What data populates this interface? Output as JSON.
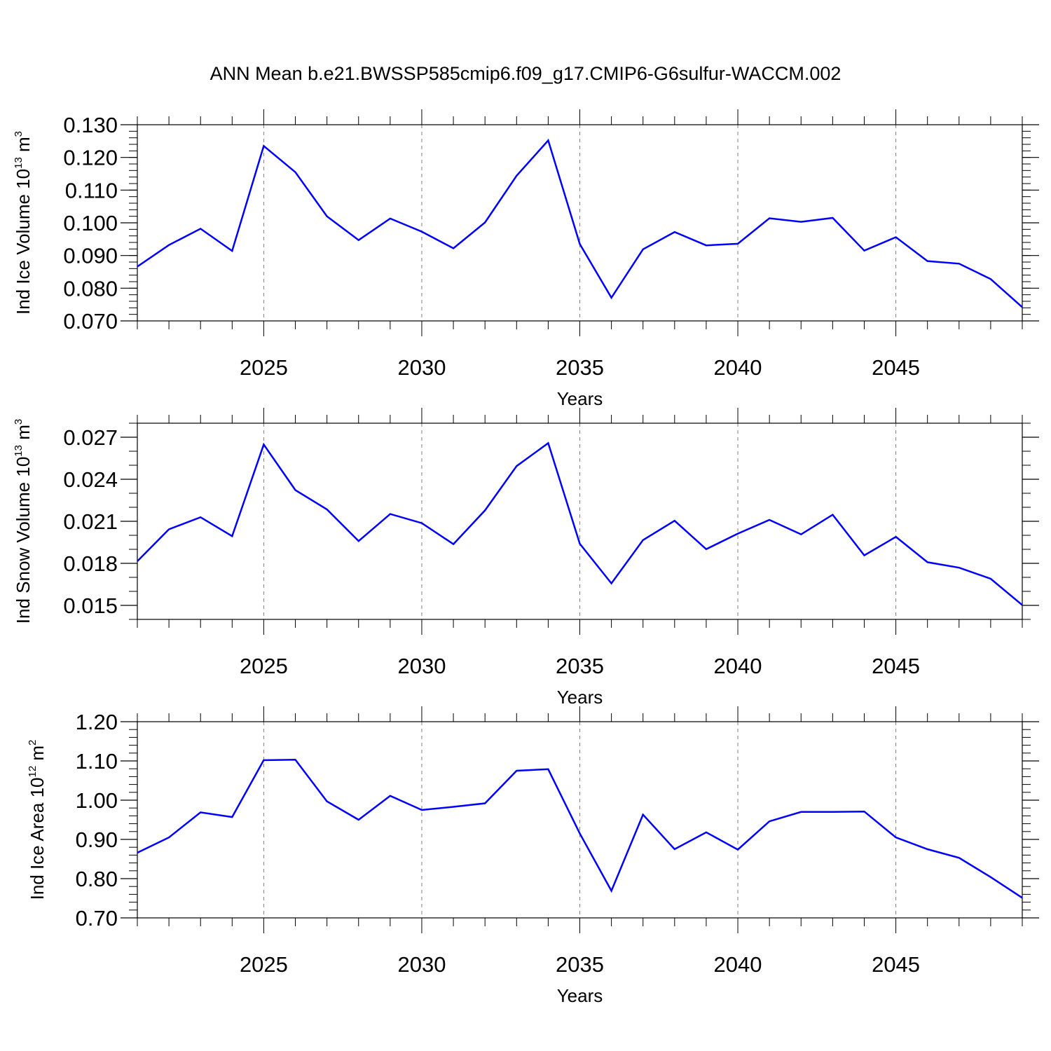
{
  "title": "ANN Mean b.e21.BWSSP585cmip6.f09_g17.CMIP6-G6sulfur-WACCM.002",
  "colors": {
    "line": "#0000ff",
    "axis": "#000000",
    "grid": "#808080"
  },
  "chart_data": [
    {
      "type": "line",
      "ylabel": {
        "text": "Ind Ice Volume 10",
        "exp": "13",
        "unit": " m",
        "unit_exp": "3"
      },
      "xlabel": "Years",
      "xlim": [
        2021,
        2049
      ],
      "ylim": [
        0.07,
        0.13
      ],
      "yticks": [
        0.07,
        0.08,
        0.09,
        0.1,
        0.11,
        0.12,
        0.13
      ],
      "ytick_labels": [
        "0.070",
        "0.080",
        "0.090",
        "0.100",
        "0.110",
        "0.120",
        "0.130"
      ],
      "yminor_step": 0.002,
      "xticks": [
        2025,
        2030,
        2035,
        2040,
        2045
      ],
      "xtick_labels": [
        "2025",
        "2030",
        "2035",
        "2040",
        "2045"
      ],
      "x": [
        2021,
        2022,
        2023,
        2024,
        2025,
        2026,
        2027,
        2028,
        2029,
        2030,
        2031,
        2032,
        2033,
        2034,
        2035,
        2036,
        2037,
        2038,
        2039,
        2040,
        2041,
        2042,
        2043,
        2044,
        2045,
        2046,
        2047,
        2048,
        2049
      ],
      "series": [
        {
          "name": "Ind Ice Volume",
          "values": [
            0.0866,
            0.0932,
            0.0982,
            0.0914,
            0.1235,
            0.1155,
            0.102,
            0.0947,
            0.1013,
            0.0973,
            0.0922,
            0.1001,
            0.1144,
            0.1252,
            0.0935,
            0.0771,
            0.0919,
            0.0972,
            0.0931,
            0.0936,
            0.1014,
            0.1003,
            0.1015,
            0.0915,
            0.0956,
            0.0883,
            0.0875,
            0.0828,
            0.0742
          ]
        }
      ]
    },
    {
      "type": "line",
      "ylabel": {
        "text": "Ind Snow Volume 10",
        "exp": "13",
        "unit": " m",
        "unit_exp": "3"
      },
      "xlabel": "Years",
      "xlim": [
        2021,
        2049
      ],
      "ylim": [
        0.014,
        0.028
      ],
      "yticks": [
        0.015,
        0.018,
        0.021,
        0.024,
        0.027
      ],
      "ytick_labels": [
        "0.015",
        "0.018",
        "0.021",
        "0.024",
        "0.027"
      ],
      "yminor_step": 0.001,
      "xticks": [
        2025,
        2030,
        2035,
        2040,
        2045
      ],
      "xtick_labels": [
        "2025",
        "2030",
        "2035",
        "2040",
        "2045"
      ],
      "x": [
        2021,
        2022,
        2023,
        2024,
        2025,
        2026,
        2027,
        2028,
        2029,
        2030,
        2031,
        2032,
        2033,
        2034,
        2035,
        2036,
        2037,
        2038,
        2039,
        2040,
        2041,
        2042,
        2043,
        2044,
        2045,
        2046,
        2047,
        2048,
        2049
      ],
      "series": [
        {
          "name": "Ind Snow Volume",
          "values": [
            0.01815,
            0.02043,
            0.02129,
            0.01994,
            0.02648,
            0.02323,
            0.02185,
            0.01959,
            0.02152,
            0.02087,
            0.01937,
            0.02178,
            0.02494,
            0.02658,
            0.0194,
            0.01657,
            0.01966,
            0.02104,
            0.01901,
            0.02012,
            0.0211,
            0.02007,
            0.02147,
            0.01857,
            0.01989,
            0.01808,
            0.01769,
            0.0169,
            0.01502
          ]
        }
      ]
    },
    {
      "type": "line",
      "ylabel": {
        "text": "Ind Ice Area 10",
        "exp": "12",
        "unit": " m",
        "unit_exp": "2"
      },
      "xlabel": "Years",
      "xlim": [
        2021,
        2049
      ],
      "ylim": [
        0.7,
        1.2
      ],
      "yticks": [
        0.7,
        0.8,
        0.9,
        1.0,
        1.1,
        1.2
      ],
      "ytick_labels": [
        "0.70",
        "0.80",
        "0.90",
        "1.00",
        "1.10",
        "1.20"
      ],
      "yminor_step": 0.02,
      "xticks": [
        2025,
        2030,
        2035,
        2040,
        2045
      ],
      "xtick_labels": [
        "2025",
        "2030",
        "2035",
        "2040",
        "2045"
      ],
      "x": [
        2021,
        2022,
        2023,
        2024,
        2025,
        2026,
        2027,
        2028,
        2029,
        2030,
        2031,
        2032,
        2033,
        2034,
        2035,
        2036,
        2037,
        2038,
        2039,
        2040,
        2041,
        2042,
        2043,
        2044,
        2045,
        2046,
        2047,
        2048,
        2049
      ],
      "series": [
        {
          "name": "Ind Ice Area",
          "values": [
            0.866,
            0.905,
            0.969,
            0.957,
            1.102,
            1.103,
            0.997,
            0.95,
            1.011,
            0.975,
            0.983,
            0.992,
            1.075,
            1.079,
            0.915,
            0.769,
            0.963,
            0.875,
            0.918,
            0.874,
            0.946,
            0.97,
            0.97,
            0.971,
            0.905,
            0.875,
            0.853,
            0.804,
            0.751
          ]
        }
      ]
    }
  ]
}
